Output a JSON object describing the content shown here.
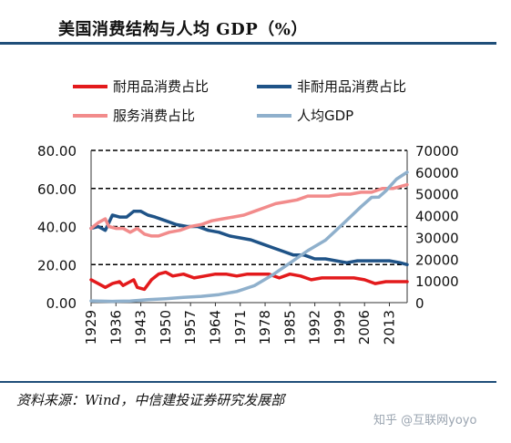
{
  "header": {
    "title": "美国消费结构与人均 GDP（%）"
  },
  "footer": {
    "source": "资料来源：Wind，中信建投证券研究发展部",
    "watermark": "知乎 @互联网yoyo"
  },
  "chart_data": {
    "type": "line",
    "title": "美国消费结构与人均 GDP（%）",
    "x_range": [
      1929,
      2018
    ],
    "x_ticks": [
      "1929",
      "1936",
      "1943",
      "1950",
      "1957",
      "1964",
      "1971",
      "1978",
      "1985",
      "1992",
      "1999",
      "2006",
      "2013"
    ],
    "y_left": {
      "range": [
        0,
        80
      ],
      "ticks": [
        "0.00",
        "20.00",
        "40.00",
        "60.00",
        "80.00"
      ]
    },
    "y_right": {
      "range": [
        0,
        70000
      ],
      "ticks": [
        "0",
        "10000",
        "20000",
        "30000",
        "40000",
        "50000",
        "60000",
        "70000"
      ]
    },
    "grid": "dashed at 20, 40, 60 (left axis)",
    "legend_position": "top",
    "series": [
      {
        "name": "耐用品消费占比",
        "axis": "left",
        "color": "#e31a1c",
        "points": [
          [
            1929,
            12
          ],
          [
            1931,
            10
          ],
          [
            1933,
            8
          ],
          [
            1935,
            10
          ],
          [
            1937,
            11
          ],
          [
            1938,
            9
          ],
          [
            1940,
            11
          ],
          [
            1941,
            12
          ],
          [
            1942,
            8
          ],
          [
            1944,
            7
          ],
          [
            1946,
            12
          ],
          [
            1948,
            15
          ],
          [
            1950,
            16
          ],
          [
            1952,
            14
          ],
          [
            1955,
            15
          ],
          [
            1958,
            13
          ],
          [
            1961,
            14
          ],
          [
            1964,
            15
          ],
          [
            1967,
            15
          ],
          [
            1970,
            14
          ],
          [
            1973,
            15
          ],
          [
            1976,
            15
          ],
          [
            1979,
            15
          ],
          [
            1982,
            13
          ],
          [
            1985,
            15
          ],
          [
            1988,
            14
          ],
          [
            1991,
            12
          ],
          [
            1994,
            13
          ],
          [
            1997,
            13
          ],
          [
            2000,
            13
          ],
          [
            2003,
            13
          ],
          [
            2006,
            12
          ],
          [
            2009,
            10
          ],
          [
            2012,
            11
          ],
          [
            2015,
            11
          ],
          [
            2018,
            11
          ]
        ]
      },
      {
        "name": "非耐用品消费占比",
        "axis": "left",
        "color": "#1f5387",
        "points": [
          [
            1929,
            39
          ],
          [
            1931,
            40
          ],
          [
            1933,
            38
          ],
          [
            1935,
            46
          ],
          [
            1937,
            45
          ],
          [
            1939,
            45
          ],
          [
            1941,
            48
          ],
          [
            1943,
            48
          ],
          [
            1945,
            46
          ],
          [
            1947,
            45
          ],
          [
            1950,
            43
          ],
          [
            1953,
            41
          ],
          [
            1956,
            40
          ],
          [
            1959,
            40
          ],
          [
            1962,
            38
          ],
          [
            1965,
            37
          ],
          [
            1968,
            35
          ],
          [
            1971,
            34
          ],
          [
            1974,
            33
          ],
          [
            1977,
            31
          ],
          [
            1980,
            29
          ],
          [
            1983,
            27
          ],
          [
            1986,
            25
          ],
          [
            1989,
            25
          ],
          [
            1992,
            23
          ],
          [
            1995,
            23
          ],
          [
            1998,
            22
          ],
          [
            2001,
            21
          ],
          [
            2004,
            22
          ],
          [
            2007,
            22
          ],
          [
            2010,
            22
          ],
          [
            2013,
            22
          ],
          [
            2016,
            21
          ],
          [
            2018,
            20
          ]
        ]
      },
      {
        "name": "服务消费占比",
        "axis": "left",
        "color": "#f28b8b",
        "points": [
          [
            1929,
            39
          ],
          [
            1931,
            42
          ],
          [
            1933,
            44
          ],
          [
            1934,
            40
          ],
          [
            1936,
            39
          ],
          [
            1938,
            39
          ],
          [
            1940,
            37
          ],
          [
            1942,
            39
          ],
          [
            1944,
            36
          ],
          [
            1946,
            35
          ],
          [
            1948,
            35
          ],
          [
            1951,
            37
          ],
          [
            1954,
            38
          ],
          [
            1957,
            40
          ],
          [
            1960,
            41
          ],
          [
            1963,
            43
          ],
          [
            1966,
            44
          ],
          [
            1969,
            45
          ],
          [
            1972,
            46
          ],
          [
            1975,
            48
          ],
          [
            1978,
            50
          ],
          [
            1981,
            52
          ],
          [
            1984,
            53
          ],
          [
            1987,
            54
          ],
          [
            1990,
            56
          ],
          [
            1993,
            56
          ],
          [
            1996,
            56
          ],
          [
            1999,
            57
          ],
          [
            2002,
            57
          ],
          [
            2005,
            58
          ],
          [
            2008,
            58
          ],
          [
            2011,
            60
          ],
          [
            2014,
            60
          ],
          [
            2016,
            61
          ],
          [
            2018,
            62
          ]
        ]
      },
      {
        "name": "人均GDP",
        "axis": "right",
        "color": "#8fb0cc",
        "points": [
          [
            1929,
            800
          ],
          [
            1935,
            600
          ],
          [
            1940,
            700
          ],
          [
            1945,
            1400
          ],
          [
            1950,
            1800
          ],
          [
            1955,
            2400
          ],
          [
            1960,
            2900
          ],
          [
            1965,
            3700
          ],
          [
            1970,
            5100
          ],
          [
            1975,
            7800
          ],
          [
            1980,
            12600
          ],
          [
            1985,
            18200
          ],
          [
            1990,
            23900
          ],
          [
            1995,
            28700
          ],
          [
            2000,
            36300
          ],
          [
            2005,
            44100
          ],
          [
            2008,
            48400
          ],
          [
            2010,
            48500
          ],
          [
            2012,
            51400
          ],
          [
            2015,
            56800
          ],
          [
            2018,
            60000
          ]
        ]
      }
    ]
  }
}
